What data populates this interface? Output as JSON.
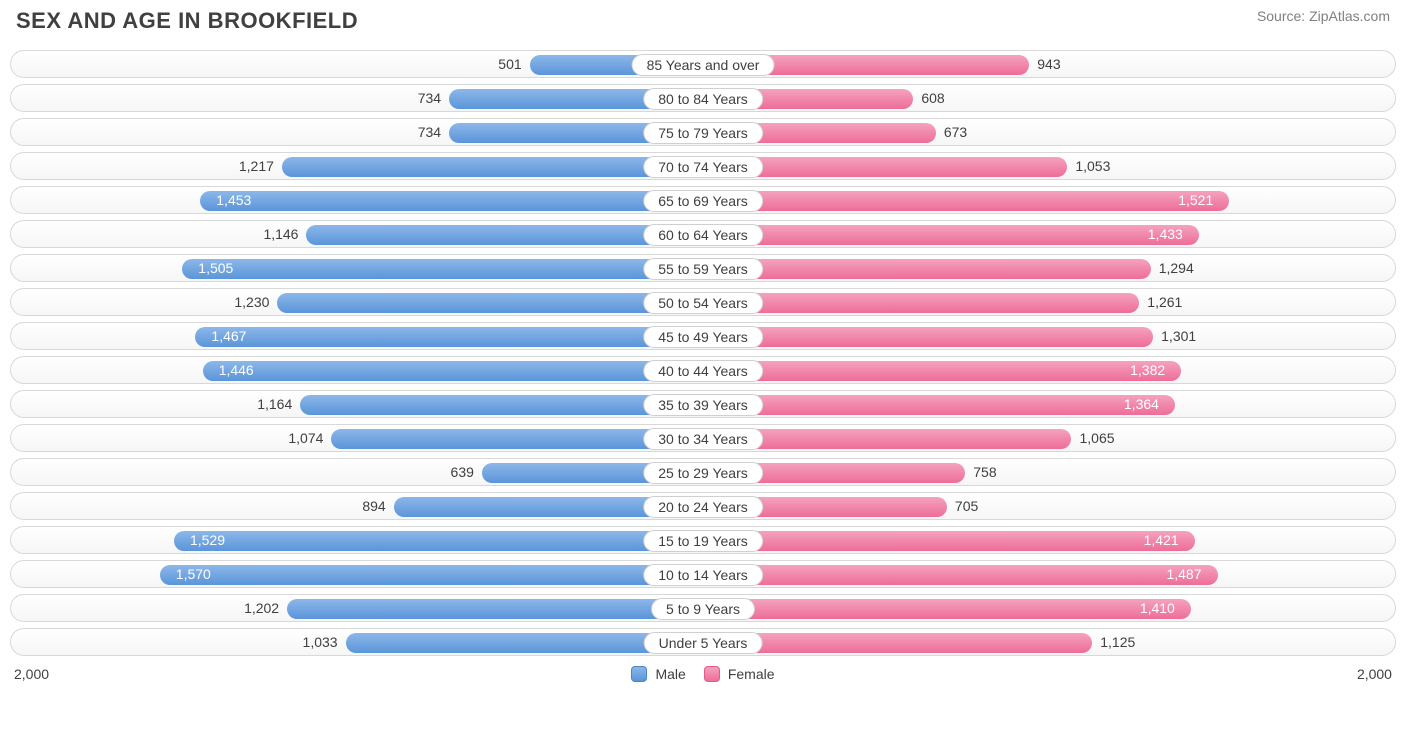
{
  "title": "SEX AND AGE IN BROOKFIELD",
  "source": "Source: ZipAtlas.com",
  "chart": {
    "type": "population-pyramid",
    "axis_max": 2000,
    "axis_label_left": "2,000",
    "axis_label_right": "2,000",
    "male_color_top": "#8db7e8",
    "male_color_bottom": "#5a95da",
    "female_color_top": "#f5a2bd",
    "female_color_bottom": "#ed6d99",
    "row_border_color": "#d8d8d8",
    "background_color": "#ffffff",
    "label_fontsize": 14,
    "title_fontsize": 22,
    "inside_threshold": 1350,
    "legend": {
      "male": "Male",
      "female": "Female"
    },
    "rows": [
      {
        "category": "85 Years and over",
        "male": 501,
        "male_label": "501",
        "female": 943,
        "female_label": "943"
      },
      {
        "category": "80 to 84 Years",
        "male": 734,
        "male_label": "734",
        "female": 608,
        "female_label": "608"
      },
      {
        "category": "75 to 79 Years",
        "male": 734,
        "male_label": "734",
        "female": 673,
        "female_label": "673"
      },
      {
        "category": "70 to 74 Years",
        "male": 1217,
        "male_label": "1,217",
        "female": 1053,
        "female_label": "1,053"
      },
      {
        "category": "65 to 69 Years",
        "male": 1453,
        "male_label": "1,453",
        "female": 1521,
        "female_label": "1,521"
      },
      {
        "category": "60 to 64 Years",
        "male": 1146,
        "male_label": "1,146",
        "female": 1433,
        "female_label": "1,433"
      },
      {
        "category": "55 to 59 Years",
        "male": 1505,
        "male_label": "1,505",
        "female": 1294,
        "female_label": "1,294"
      },
      {
        "category": "50 to 54 Years",
        "male": 1230,
        "male_label": "1,230",
        "female": 1261,
        "female_label": "1,261"
      },
      {
        "category": "45 to 49 Years",
        "male": 1467,
        "male_label": "1,467",
        "female": 1301,
        "female_label": "1,301"
      },
      {
        "category": "40 to 44 Years",
        "male": 1446,
        "male_label": "1,446",
        "female": 1382,
        "female_label": "1,382"
      },
      {
        "category": "35 to 39 Years",
        "male": 1164,
        "male_label": "1,164",
        "female": 1364,
        "female_label": "1,364"
      },
      {
        "category": "30 to 34 Years",
        "male": 1074,
        "male_label": "1,074",
        "female": 1065,
        "female_label": "1,065"
      },
      {
        "category": "25 to 29 Years",
        "male": 639,
        "male_label": "639",
        "female": 758,
        "female_label": "758"
      },
      {
        "category": "20 to 24 Years",
        "male": 894,
        "male_label": "894",
        "female": 705,
        "female_label": "705"
      },
      {
        "category": "15 to 19 Years",
        "male": 1529,
        "male_label": "1,529",
        "female": 1421,
        "female_label": "1,421"
      },
      {
        "category": "10 to 14 Years",
        "male": 1570,
        "male_label": "1,570",
        "female": 1487,
        "female_label": "1,487"
      },
      {
        "category": "5 to 9 Years",
        "male": 1202,
        "male_label": "1,202",
        "female": 1410,
        "female_label": "1,410"
      },
      {
        "category": "Under 5 Years",
        "male": 1033,
        "male_label": "1,033",
        "female": 1125,
        "female_label": "1,125"
      }
    ]
  }
}
